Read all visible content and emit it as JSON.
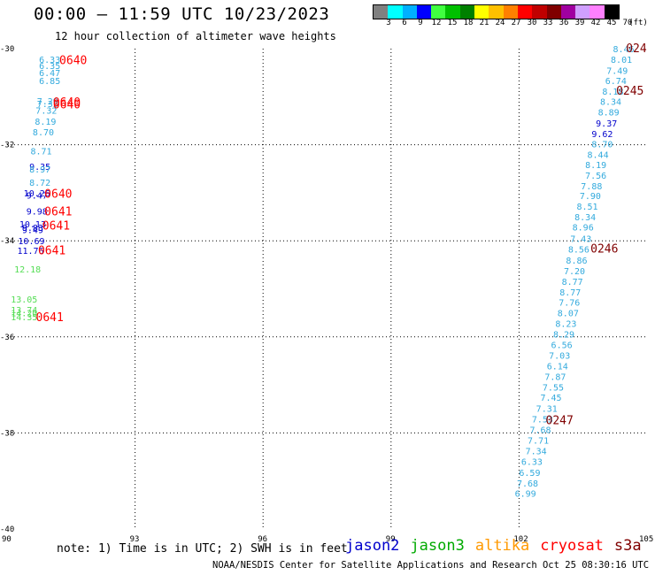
{
  "header": {
    "title": "00:00 — 11:59 UTC 10/23/2023",
    "subtitle": "12 hour collection of altimeter wave heights"
  },
  "legend": {
    "unit": "(ft)",
    "colors": [
      "#808080",
      "#00ffff",
      "#00b0ff",
      "#0000ff",
      "#40ff40",
      "#00c000",
      "#008000",
      "#ffff00",
      "#ffc000",
      "#ff8000",
      "#ff0000",
      "#c00000",
      "#800000",
      "#a000a0",
      "#d0a0ff",
      "#ff80ff",
      "#000000"
    ],
    "labels": [
      "3",
      "6",
      "9",
      "12",
      "15",
      "18",
      "21",
      "24",
      "27",
      "30",
      "33",
      "36",
      "39",
      "42",
      "45",
      "70"
    ]
  },
  "map": {
    "lat_labels": [
      "-30",
      "-32",
      "-34",
      "-36",
      "-38",
      "-40"
    ],
    "lon_labels": [
      "90",
      "93",
      "96",
      "99",
      "102",
      "105"
    ],
    "lon_range": [
      90,
      105
    ],
    "lat_range": [
      -30,
      -40
    ]
  },
  "tracks_left": [
    {
      "text": "6.33",
      "color": "#33aadd",
      "lon": 91.0,
      "lat": -30.22
    },
    {
      "text": "6.35",
      "color": "#33aadd",
      "lon": 91.0,
      "lat": -30.35
    },
    {
      "text": "6.47",
      "color": "#33aadd",
      "lon": 91.0,
      "lat": -30.5
    },
    {
      "text": "6.85",
      "color": "#33aadd",
      "lon": 91.0,
      "lat": -30.66
    },
    {
      "text": "7.29",
      "color": "#33aadd",
      "lon": 90.95,
      "lat": -31.09
    },
    {
      "text": "7.33",
      "color": "#33aadd",
      "lon": 90.95,
      "lat": -31.14
    },
    {
      "text": "7.32",
      "color": "#33aadd",
      "lon": 90.92,
      "lat": -31.28
    },
    {
      "text": "8.19",
      "color": "#33aadd",
      "lon": 90.9,
      "lat": -31.51
    },
    {
      "text": "8.70",
      "color": "#33aadd",
      "lon": 90.85,
      "lat": -31.73
    },
    {
      "text": "8.71",
      "color": "#33aadd",
      "lon": 90.8,
      "lat": -32.13
    },
    {
      "text": "9.35",
      "color": "#0000cc",
      "lon": 90.77,
      "lat": -32.45
    },
    {
      "text": "8.97",
      "color": "#33aadd",
      "lon": 90.77,
      "lat": -32.5
    },
    {
      "text": "8.72",
      "color": "#33aadd",
      "lon": 90.77,
      "lat": -32.78
    },
    {
      "text": "10.26",
      "color": "#0000cc",
      "lon": 90.7,
      "lat": -33.0
    },
    {
      "text": "9.47",
      "color": "#0000cc",
      "lon": 90.7,
      "lat": -33.05
    },
    {
      "text": "9.98",
      "color": "#0000cc",
      "lon": 90.7,
      "lat": -33.38
    },
    {
      "text": "10.13",
      "color": "#0000cc",
      "lon": 90.6,
      "lat": -33.65
    },
    {
      "text": "9.83",
      "color": "#0000cc",
      "lon": 90.6,
      "lat": -33.72
    },
    {
      "text": "9.49",
      "color": "#0000cc",
      "lon": 90.6,
      "lat": -33.77
    },
    {
      "text": "10.69",
      "color": "#0000cc",
      "lon": 90.57,
      "lat": -34.0
    },
    {
      "text": "11.76",
      "color": "#0000cc",
      "lon": 90.55,
      "lat": -34.2
    },
    {
      "text": "12.18",
      "color": "#55dd55",
      "lon": 90.48,
      "lat": -34.59
    },
    {
      "text": "13.05",
      "color": "#55dd55",
      "lon": 90.4,
      "lat": -35.21
    },
    {
      "text": "13.74",
      "color": "#55dd55",
      "lon": 90.4,
      "lat": -35.43
    },
    {
      "text": "14.20",
      "color": "#55dd55",
      "lon": 90.4,
      "lat": -35.5
    },
    {
      "text": "14.35",
      "color": "#55dd55",
      "lon": 90.4,
      "lat": -35.58
    }
  ],
  "tracks_right": [
    {
      "text": "8.46",
      "color": "#33aadd",
      "lon": 104.45,
      "lat": -30.0
    },
    {
      "text": "8.01",
      "color": "#33aadd",
      "lon": 104.4,
      "lat": -30.22
    },
    {
      "text": "7.49",
      "color": "#33aadd",
      "lon": 104.3,
      "lat": -30.45
    },
    {
      "text": "6.74",
      "color": "#33aadd",
      "lon": 104.27,
      "lat": -30.66
    },
    {
      "text": "8.18",
      "color": "#33aadd",
      "lon": 104.2,
      "lat": -30.88
    },
    {
      "text": "8.34",
      "color": "#33aadd",
      "lon": 104.15,
      "lat": -31.1
    },
    {
      "text": "8.89",
      "color": "#33aadd",
      "lon": 104.1,
      "lat": -31.32
    },
    {
      "text": "9.37",
      "color": "#0000cc",
      "lon": 104.05,
      "lat": -31.55
    },
    {
      "text": "9.62",
      "color": "#0000cc",
      "lon": 103.95,
      "lat": -31.77
    },
    {
      "text": "8.70",
      "color": "#33aadd",
      "lon": 103.95,
      "lat": -31.98
    },
    {
      "text": "8.44",
      "color": "#33aadd",
      "lon": 103.85,
      "lat": -32.2
    },
    {
      "text": "8.19",
      "color": "#33aadd",
      "lon": 103.8,
      "lat": -32.41
    },
    {
      "text": "7.56",
      "color": "#33aadd",
      "lon": 103.8,
      "lat": -32.63
    },
    {
      "text": "7.88",
      "color": "#33aadd",
      "lon": 103.7,
      "lat": -32.85
    },
    {
      "text": "7.90",
      "color": "#33aadd",
      "lon": 103.67,
      "lat": -33.06
    },
    {
      "text": "8.51",
      "color": "#33aadd",
      "lon": 103.6,
      "lat": -33.28
    },
    {
      "text": "8.34",
      "color": "#33aadd",
      "lon": 103.55,
      "lat": -33.5
    },
    {
      "text": "8.96",
      "color": "#33aadd",
      "lon": 103.5,
      "lat": -33.71
    },
    {
      "text": "7.43",
      "color": "#33aadd",
      "lon": 103.45,
      "lat": -33.95
    },
    {
      "text": "8.56",
      "color": "#33aadd",
      "lon": 103.4,
      "lat": -34.17
    },
    {
      "text": "8.86",
      "color": "#33aadd",
      "lon": 103.35,
      "lat": -34.4
    },
    {
      "text": "7.20",
      "color": "#33aadd",
      "lon": 103.3,
      "lat": -34.62
    },
    {
      "text": "8.77",
      "color": "#33aadd",
      "lon": 103.25,
      "lat": -34.84
    },
    {
      "text": "8.77",
      "color": "#33aadd",
      "lon": 103.2,
      "lat": -35.06
    },
    {
      "text": "7.76",
      "color": "#33aadd",
      "lon": 103.18,
      "lat": -35.28
    },
    {
      "text": "8.07",
      "color": "#33aadd",
      "lon": 103.15,
      "lat": -35.5
    },
    {
      "text": "8.23",
      "color": "#33aadd",
      "lon": 103.1,
      "lat": -35.72
    },
    {
      "text": "8.29",
      "color": "#33aadd",
      "lon": 103.05,
      "lat": -35.94
    },
    {
      "text": "6.56",
      "color": "#33aadd",
      "lon": 103.0,
      "lat": -36.16
    },
    {
      "text": "7.03",
      "color": "#33aadd",
      "lon": 102.95,
      "lat": -36.38
    },
    {
      "text": "6.14",
      "color": "#33aadd",
      "lon": 102.9,
      "lat": -36.6
    },
    {
      "text": "7.87",
      "color": "#33aadd",
      "lon": 102.85,
      "lat": -36.82
    },
    {
      "text": "7.55",
      "color": "#33aadd",
      "lon": 102.8,
      "lat": -37.04
    },
    {
      "text": "7.45",
      "color": "#33aadd",
      "lon": 102.75,
      "lat": -37.26
    },
    {
      "text": "7.31",
      "color": "#33aadd",
      "lon": 102.65,
      "lat": -37.49
    },
    {
      "text": "7.53",
      "color": "#33aadd",
      "lon": 102.55,
      "lat": -37.71
    },
    {
      "text": "7.68",
      "color": "#33aadd",
      "lon": 102.5,
      "lat": -37.93
    },
    {
      "text": "7.71",
      "color": "#33aadd",
      "lon": 102.45,
      "lat": -38.15
    },
    {
      "text": "7.34",
      "color": "#33aadd",
      "lon": 102.4,
      "lat": -38.37
    },
    {
      "text": "6.33",
      "color": "#33aadd",
      "lon": 102.3,
      "lat": -38.59
    },
    {
      "text": "6.59",
      "color": "#33aadd",
      "lon": 102.25,
      "lat": -38.82
    },
    {
      "text": "7.68",
      "color": "#33aadd",
      "lon": 102.2,
      "lat": -39.04
    },
    {
      "text": "6.99",
      "color": "#33aadd",
      "lon": 102.15,
      "lat": -39.25
    }
  ],
  "time_labels": [
    {
      "text": "0640",
      "color": "#ff0000",
      "lon": 91.55,
      "lat": -30.25
    },
    {
      "text": "0640",
      "color": "#ff0000",
      "lon": 91.4,
      "lat": -31.12
    },
    {
      "text": "0640",
      "color": "#ff0000",
      "lon": 91.4,
      "lat": -31.17
    },
    {
      "text": "0640",
      "color": "#ff0000",
      "lon": 91.2,
      "lat": -33.03
    },
    {
      "text": "0641",
      "color": "#ff0000",
      "lon": 91.2,
      "lat": -33.4
    },
    {
      "text": "0641",
      "color": "#ff0000",
      "lon": 91.15,
      "lat": -33.69
    },
    {
      "text": "0641",
      "color": "#ff0000",
      "lon": 91.05,
      "lat": -34.21
    },
    {
      "text": "0641",
      "color": "#ff0000",
      "lon": 91.0,
      "lat": -35.6
    },
    {
      "text": "024",
      "color": "#800000",
      "lon": 104.75,
      "lat": -30.0
    },
    {
      "text": "0245",
      "color": "#800000",
      "lon": 104.6,
      "lat": -30.88
    },
    {
      "text": "0246",
      "color": "#800000",
      "lon": 104.0,
      "lat": -34.17
    },
    {
      "text": "0247",
      "color": "#800000",
      "lon": 102.95,
      "lat": -37.74
    }
  ],
  "note": "note: 1) Time is in UTC; 2) SWH is in feet",
  "satellites": [
    {
      "name": "jason2",
      "color": "#0000cc"
    },
    {
      "name": "jason3",
      "color": "#00aa00"
    },
    {
      "name": "altika",
      "color": "#ff9900"
    },
    {
      "name": "cryosat",
      "color": "#ff0000"
    },
    {
      "name": "s3a",
      "color": "#800000"
    }
  ],
  "footer": "NOAA/NESDIS Center for Satellite Applications and Research   Oct 25 08:30:16 UTC 2023"
}
